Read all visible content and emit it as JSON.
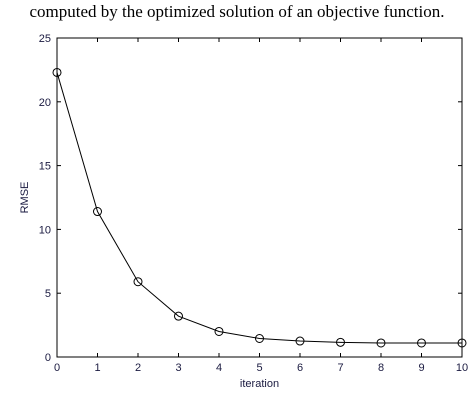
{
  "caption": "computed by the optimized solution of an objective function.",
  "chart_data": {
    "type": "line",
    "title": "",
    "xlabel": "iteration",
    "ylabel": "RMSE",
    "xlim": [
      0,
      10
    ],
    "ylim": [
      0,
      25
    ],
    "xticks": [
      0,
      1,
      2,
      3,
      4,
      5,
      6,
      7,
      8,
      9,
      10
    ],
    "yticks": [
      0,
      5,
      10,
      15,
      20,
      25
    ],
    "grid": false,
    "marker": "circle",
    "line_color": "#000000",
    "series": [
      {
        "x": [
          0,
          1,
          2,
          3,
          4,
          5,
          6,
          7,
          8,
          9,
          10
        ],
        "values": [
          22.3,
          11.4,
          5.9,
          3.2,
          2.0,
          1.45,
          1.25,
          1.15,
          1.1,
          1.1,
          1.1
        ]
      }
    ]
  }
}
